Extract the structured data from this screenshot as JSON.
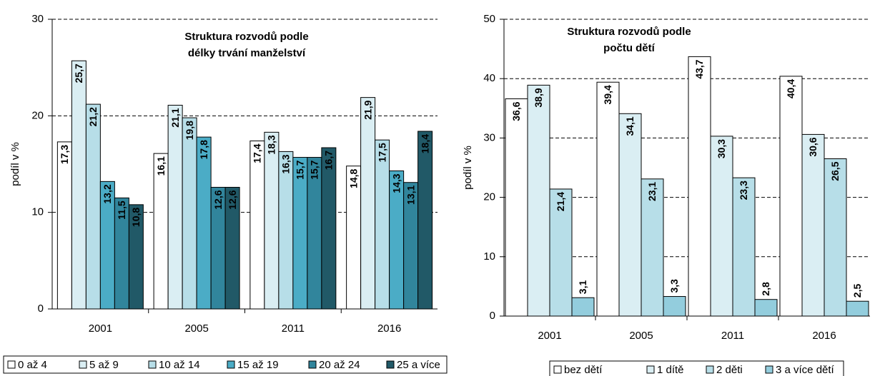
{
  "chart_data": [
    {
      "type": "bar",
      "title_lines": [
        "Struktura rozvodů podle",
        "délky trvání manželství"
      ],
      "ylabel": "podíl v %",
      "categories": [
        "2001",
        "2005",
        "2011",
        "2016"
      ],
      "ylim": [
        0,
        30
      ],
      "yticks": [
        0,
        10,
        20,
        30
      ],
      "grid": true,
      "series": [
        {
          "name": "0 až 4",
          "color": "#ffffff",
          "values": [
            17.3,
            16.1,
            17.4,
            14.8
          ],
          "value_labels": [
            "17,3",
            "16,1",
            "17,4",
            "14,8"
          ]
        },
        {
          "name": "5 až 9",
          "color": "#daeef3",
          "values": [
            25.7,
            21.1,
            18.3,
            21.9
          ],
          "value_labels": [
            "25,7",
            "21,1",
            "18,3",
            "21,9"
          ]
        },
        {
          "name": "10 až 14",
          "color": "#b7dee8",
          "values": [
            21.2,
            19.8,
            16.3,
            17.5
          ],
          "value_labels": [
            "21,2",
            "19,8",
            "16,3",
            "17,5"
          ]
        },
        {
          "name": "15 až 19",
          "color": "#4bacc6",
          "values": [
            13.2,
            17.8,
            15.7,
            14.3
          ],
          "value_labels": [
            "13,2",
            "17,8",
            "15,7",
            "14,3"
          ]
        },
        {
          "name": "20 až 24",
          "color": "#31859c",
          "values": [
            11.5,
            12.6,
            15.7,
            13.1
          ],
          "value_labels": [
            "11,5",
            "12,6",
            "15,7",
            "13,1"
          ]
        },
        {
          "name": "25 a více",
          "color": "#215967",
          "values": [
            10.8,
            12.6,
            16.7,
            18.4
          ],
          "value_labels": [
            "10,8",
            "12,6",
            "16,7",
            "18,4"
          ]
        }
      ]
    },
    {
      "type": "bar",
      "title_lines": [
        "Struktura rozvodů podle",
        "počtu dětí"
      ],
      "ylabel": "podíl v %",
      "categories": [
        "2001",
        "2005",
        "2011",
        "2016"
      ],
      "ylim": [
        0,
        50
      ],
      "yticks": [
        0,
        10,
        20,
        30,
        40,
        50
      ],
      "grid": true,
      "series": [
        {
          "name": "bez dětí",
          "color": "#ffffff",
          "values": [
            36.6,
            39.4,
            43.7,
            40.4
          ],
          "value_labels": [
            "36,6",
            "39,4",
            "43,7",
            "40,4"
          ]
        },
        {
          "name": "1 dítě",
          "color": "#daeef3",
          "values": [
            38.9,
            34.1,
            30.3,
            30.6
          ],
          "value_labels": [
            "38,9",
            "34,1",
            "30,3",
            "30,6"
          ]
        },
        {
          "name": "2 děti",
          "color": "#b7dee8",
          "values": [
            21.4,
            23.1,
            23.3,
            26.5
          ],
          "value_labels": [
            "21,4",
            "23,1",
            "23,3",
            "26,5"
          ]
        },
        {
          "name": "3 a více dětí",
          "color": "#93cddd",
          "values": [
            3.1,
            3.3,
            2.8,
            2.5
          ],
          "value_labels": [
            "3,1",
            "3,3",
            "2,8",
            "2,5"
          ]
        }
      ]
    }
  ]
}
